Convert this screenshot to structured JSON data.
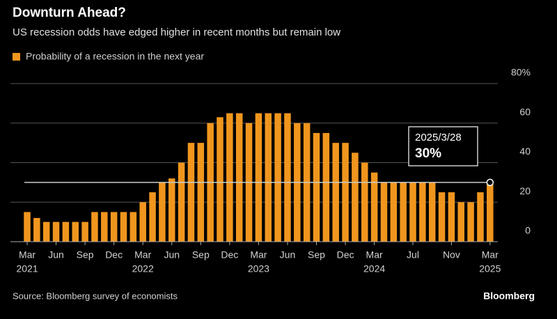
{
  "chart_data": {
    "type": "bar",
    "title": "Downturn Ahead?",
    "subtitle": "US recession odds have edged higher in recent months but remain low",
    "series": [
      {
        "name": "Probability of a recession in the next year",
        "color": "#f0961e",
        "values": [
          15,
          12,
          10,
          10,
          10,
          10,
          10,
          15,
          15,
          15,
          15,
          15,
          20,
          25,
          30,
          32,
          40,
          50,
          50,
          60,
          63,
          65,
          65,
          60,
          65,
          65,
          65,
          65,
          60,
          60,
          55,
          55,
          50,
          50,
          45,
          40,
          35,
          30,
          30,
          30,
          30,
          30,
          30,
          25,
          25,
          20,
          20,
          25,
          30
        ]
      }
    ],
    "categories": [
      "Mar",
      null,
      null,
      "Jun",
      null,
      null,
      "Sep",
      null,
      null,
      "Dec",
      null,
      null,
      "Mar",
      null,
      null,
      "Jun",
      null,
      null,
      "Sep",
      null,
      null,
      "Dec",
      null,
      null,
      "Mar",
      null,
      null,
      "Jun",
      null,
      null,
      "Sep",
      null,
      null,
      "Dec",
      null,
      null,
      "Mar",
      null,
      null,
      null,
      "Jul",
      null,
      null,
      null,
      "Nov",
      null,
      null,
      null,
      "Mar"
    ],
    "year_labels": [
      "2021",
      null,
      null,
      null,
      null,
      null,
      null,
      null,
      null,
      null,
      null,
      null,
      "2022",
      null,
      null,
      null,
      null,
      null,
      null,
      null,
      null,
      null,
      null,
      null,
      "2023",
      null,
      null,
      null,
      null,
      null,
      null,
      null,
      null,
      null,
      null,
      null,
      "2024",
      null,
      null,
      null,
      null,
      null,
      null,
      null,
      null,
      null,
      null,
      null,
      "2025"
    ],
    "ylim": [
      0,
      80
    ],
    "yticks": [
      0,
      20,
      40,
      60,
      {
        "value": 80,
        "label": "80%"
      }
    ],
    "grid": true,
    "reference_line": 30,
    "annotation": {
      "date": "2025/3/28",
      "value": 30,
      "label": "30%"
    },
    "source": "Source: Bloomberg survey of economists",
    "brand": "Bloomberg"
  }
}
